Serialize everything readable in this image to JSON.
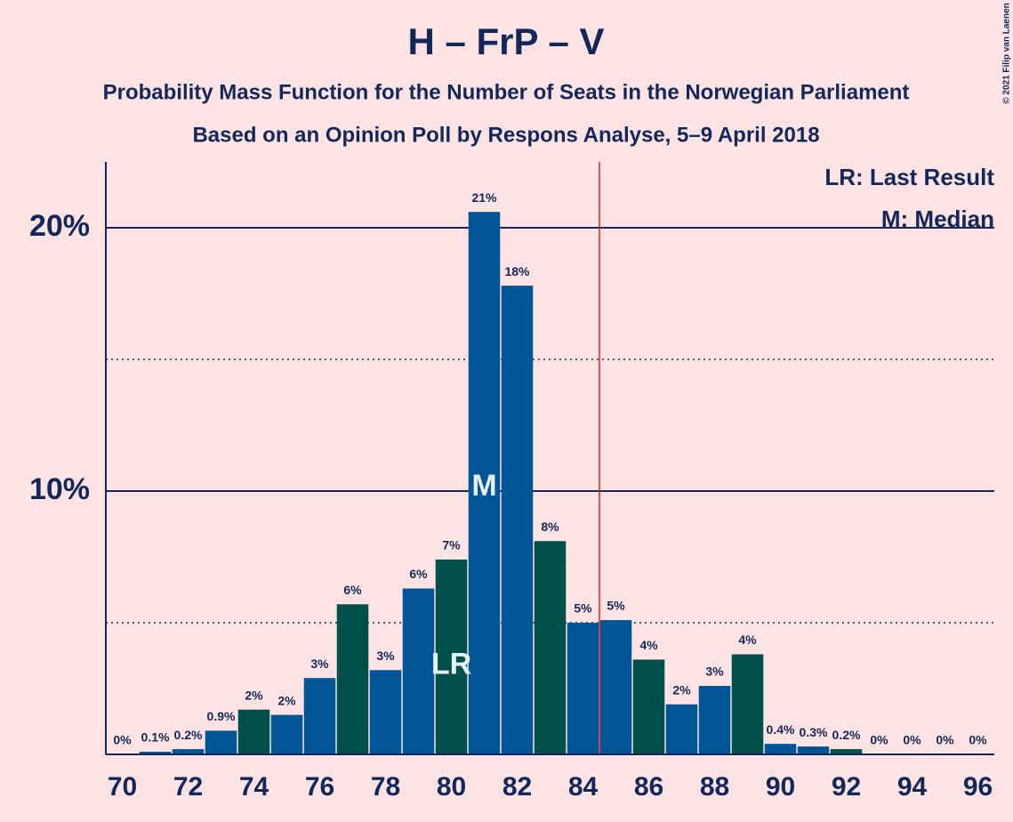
{
  "chart_data": {
    "type": "bar",
    "title": "H – FrP – V",
    "subtitle": "Probability Mass Function for the Number of Seats in the Norwegian Parliament",
    "subtitle2": "Based on an Opinion Poll by Respons Analyse, 5–9 April 2018",
    "credit": "© 2021 Filip van Laenen",
    "x": [
      70,
      71,
      72,
      73,
      74,
      75,
      76,
      77,
      78,
      79,
      80,
      81,
      82,
      83,
      84,
      85,
      86,
      87,
      88,
      89,
      90,
      91,
      92,
      93,
      94,
      95,
      96
    ],
    "values": [
      0,
      0.1,
      0.2,
      0.9,
      1.7,
      1.5,
      2.9,
      5.7,
      3.2,
      6.3,
      7.4,
      20.6,
      17.8,
      8.1,
      5.0,
      5.1,
      3.6,
      1.9,
      2.6,
      3.8,
      0.4,
      0.3,
      0.2,
      0,
      0,
      0,
      0
    ],
    "value_labels": [
      "0%",
      "0.1%",
      "0.2%",
      "0.9%",
      "2%",
      "2%",
      "3%",
      "6%",
      "3%",
      "6%",
      "7%",
      "21%",
      "18%",
      "8%",
      "5%",
      "5%",
      "4%",
      "2%",
      "3%",
      "4%",
      "0.4%",
      "0.3%",
      "0.2%",
      "0%",
      "0%",
      "0%",
      "0%"
    ],
    "colors": [
      "#005596",
      "#005596",
      "#005596",
      "#005596",
      "#00504a",
      "#005596",
      "#005596",
      "#00504a",
      "#005596",
      "#005596",
      "#00504a",
      "#005596",
      "#005596",
      "#00504a",
      "#005596",
      "#005596",
      "#00504a",
      "#005596",
      "#005596",
      "#00504a",
      "#005596",
      "#005596",
      "#00504a",
      "#005596",
      "#005596",
      "#00504a",
      "#005596"
    ],
    "xlim": [
      69.5,
      96.5
    ],
    "xticks": [
      70,
      72,
      74,
      76,
      78,
      80,
      82,
      84,
      86,
      88,
      90,
      92,
      94,
      96
    ],
    "ylim": [
      0,
      22.5
    ],
    "yticks": [
      {
        "value": 10,
        "label": "10%"
      },
      {
        "value": 20,
        "label": "20%"
      }
    ],
    "minor_yticks": [
      5,
      15
    ],
    "majority_line": 84.5,
    "majority_color": "#e8251f",
    "annotations": [
      {
        "x": 80,
        "label": "LR"
      },
      {
        "x": 81,
        "label": "M"
      }
    ],
    "legend": [
      "LR: Last Result",
      "M: Median"
    ]
  }
}
